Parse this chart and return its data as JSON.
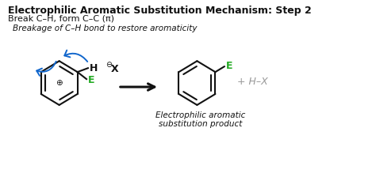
{
  "title": "Electrophilic Aromatic Substitution Mechanism: Step 2",
  "subtitle": "Break C–H, form C–C (π)",
  "italic_note": "Breakage of C–H bond to restore aromaticity",
  "product_label": "Electrophilic aromatic\nsubstitution product",
  "green_color": "#22aa22",
  "blue_color": "#1166cc",
  "gray_color": "#999999",
  "black_color": "#111111",
  "bg_color": "#ffffff"
}
